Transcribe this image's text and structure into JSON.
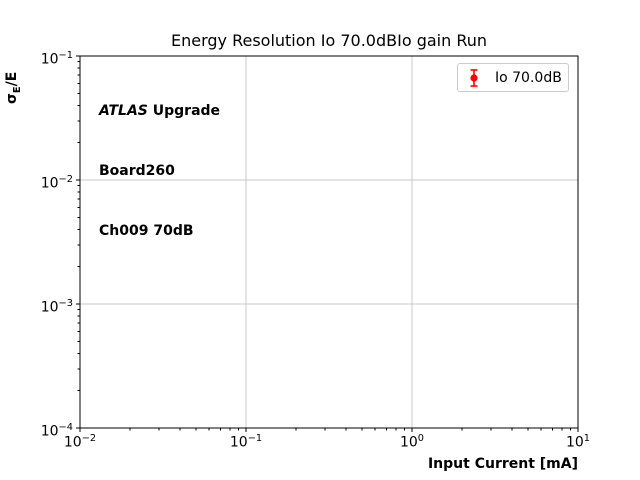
{
  "figure": {
    "title": "Energy Resolution Io 70.0dBIo gain Run"
  },
  "annotation": {
    "experiment": "ATLAS",
    "experiment_suffix": " Upgrade",
    "line2": "Board260",
    "line3": "Ch009 70dB"
  },
  "legend": {
    "label": "Io 70.0dB",
    "marker": "errorbar-circle-icon",
    "marker_color": "#ff0000",
    "border_color": "#cccccc"
  },
  "ylabel_parts": {
    "symbol": "σ",
    "subscript": "E",
    "suffix": "/E"
  },
  "chart_data": {
    "type": "scatter",
    "title": "Energy Resolution Io 70.0dBIo gain Run",
    "xlabel": "Input Current [mA]",
    "ylabel": "σE/E",
    "x_scale": "log",
    "y_scale": "log",
    "xlim": [
      0.01,
      10
    ],
    "ylim": [
      0.0001,
      0.1
    ],
    "x_tick_exponents": [
      -2,
      -1,
      0,
      1
    ],
    "y_tick_exponents": [
      -1,
      -2,
      -3,
      -4
    ],
    "x_tick_labels": [
      "10^-2",
      "10^-1",
      "10^0",
      "10^1"
    ],
    "y_tick_labels": [
      "10^-1",
      "10^-2",
      "10^-3",
      "10^-4"
    ],
    "grid": true,
    "grid_color": "#c9c9c9",
    "spine_color": "#000000",
    "legend_position": "upper right",
    "series": [
      {
        "name": "Io 70.0dB",
        "color": "#ff0000",
        "marker": "errorbar-circle",
        "points": []
      }
    ]
  }
}
